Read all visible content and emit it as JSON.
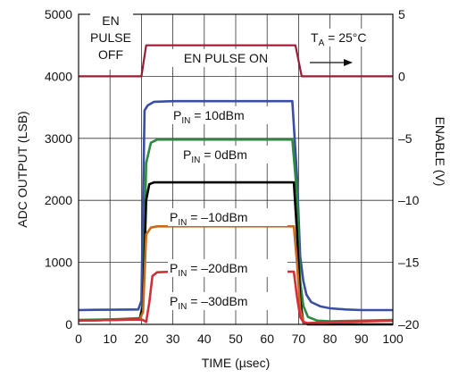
{
  "chart_data": {
    "type": "line",
    "xlabel": "TIME (µsec)",
    "ylabel": "ADC OUTPUT (LSB)",
    "y2label": "ENABLE (V)",
    "xlim": [
      0,
      100
    ],
    "ylim": [
      0,
      5000
    ],
    "y2lim": [
      -20,
      5
    ],
    "xticks": [
      0,
      10,
      20,
      30,
      40,
      50,
      60,
      70,
      80,
      90,
      100
    ],
    "yticks": [
      0,
      1000,
      2000,
      3000,
      4000,
      5000
    ],
    "y2ticks": [
      -20,
      -15,
      -10,
      -5,
      0,
      5
    ],
    "grid": true,
    "series": [
      {
        "name": "EN PULSE",
        "axis": "y2",
        "color": "#9b1b35",
        "x": [
          0,
          20,
          21.5,
          69,
          71,
          100
        ],
        "y": [
          0,
          0,
          2.5,
          2.5,
          0,
          0
        ]
      },
      {
        "name": "PIN = 10dBm",
        "axis": "y",
        "color": "#3a4fa3",
        "x": [
          0,
          5,
          19,
          20,
          21,
          22,
          24,
          30,
          50,
          68,
          69.5,
          70.5,
          71.5,
          72.5,
          74,
          77,
          80,
          85,
          90,
          100
        ],
        "y": [
          230,
          235,
          240,
          380,
          3450,
          3530,
          3590,
          3600,
          3600,
          3600,
          2400,
          1100,
          700,
          480,
          360,
          290,
          260,
          240,
          230,
          230
        ]
      },
      {
        "name": "PIN = 0dBm",
        "axis": "y",
        "color": "#2b8a3e",
        "x": [
          0,
          10,
          19.5,
          20.5,
          21.5,
          23,
          25,
          30,
          50,
          68,
          69.5,
          70.5,
          71.5,
          73,
          76,
          80,
          90,
          100
        ],
        "y": [
          70,
          80,
          100,
          350,
          2600,
          2930,
          2980,
          2980,
          2980,
          2980,
          2100,
          700,
          300,
          120,
          60,
          50,
          60,
          70
        ]
      },
      {
        "name": "PIN = –10dBm",
        "axis": "y",
        "color": "#000000",
        "x": [
          0,
          19.5,
          20.5,
          21.5,
          22.5,
          24,
          30,
          50,
          68.5,
          69.5,
          70.5,
          71.5,
          73,
          100
        ],
        "y": [
          60,
          80,
          300,
          2000,
          2260,
          2290,
          2290,
          2290,
          2290,
          1500,
          400,
          30,
          0,
          0
        ]
      },
      {
        "name": "PIN = –20dBm",
        "axis": "y",
        "color": "#c86a1e",
        "x": [
          0,
          19.5,
          20.5,
          21.5,
          23,
          25,
          30,
          50,
          68.5,
          69.5,
          70.5,
          71.5,
          72.5,
          74,
          100
        ],
        "y": [
          60,
          80,
          200,
          1450,
          1560,
          1580,
          1580,
          1580,
          1580,
          1000,
          250,
          40,
          10,
          20,
          60
        ]
      },
      {
        "name": "PIN = –30dBm",
        "axis": "y",
        "color": "#d32f3a",
        "x": [
          0,
          19,
          20.5,
          21.5,
          22.5,
          23.5,
          25,
          30,
          50,
          68.5,
          69.5,
          70.5,
          71.5,
          73,
          76,
          80,
          90,
          100
        ],
        "y": [
          60,
          80,
          70,
          40,
          350,
          780,
          840,
          850,
          850,
          850,
          450,
          120,
          40,
          20,
          30,
          40,
          50,
          60
        ]
      }
    ],
    "labels": {
      "en_pulse_off_l1": "EN",
      "en_pulse_off_l2": "PULSE",
      "en_pulse_off_l3": "OFF",
      "en_pulse_on": "EN PULSE ON",
      "ta_main": "T",
      "ta_sub": "A",
      "ta_rest": " = 25°C",
      "p_main": "P",
      "p_sub": "IN",
      "p10": " = 10dBm",
      "p0": " = 0dBm",
      "pm10": " = –10dBm",
      "pm20": " = –20dBm",
      "pm30": " = –30dBm"
    }
  }
}
